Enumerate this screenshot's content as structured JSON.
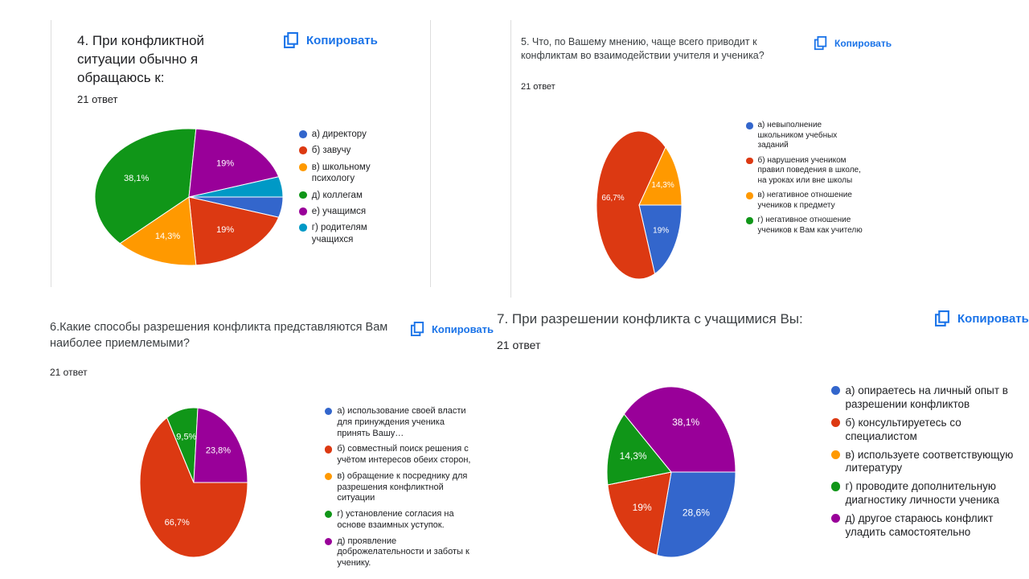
{
  "chart_data": [
    {
      "type": "pie",
      "title": "4. При конфликтной ситуации обычно я обращаюсь к:",
      "subtitle": "21 ответ",
      "copy_button": "Копировать",
      "categories": [
        "а) директору",
        "б) завучу",
        "в) школьному психологу",
        "д) коллегам",
        "е) учащимся",
        "г) родителям учащихся"
      ],
      "values": [
        4.8,
        19,
        14.3,
        38.1,
        19,
        4.8
      ],
      "value_labels": [
        null,
        "19%",
        "14,3%",
        "38,1%",
        "19%",
        null
      ],
      "colors": [
        "#3366cc",
        "#dc3912",
        "#ff9900",
        "#109618",
        "#990099",
        "#0099c6"
      ]
    },
    {
      "type": "pie",
      "title": "5. Что, по Вашему мнению, чаще всего приводит к конфликтам во взаимодействии учителя и ученика?",
      "subtitle": "21 ответ",
      "copy_button": "Копировать",
      "categories": [
        "а) невыполнение школьником учебных заданий",
        "б) нарушения учеником правил поведения в школе, на уроках или вне школы",
        "в) негативное отношение учеников к предмету",
        "г) негативное отношение учеников к Вам как учителю"
      ],
      "values": [
        19,
        66.7,
        14.3,
        0
      ],
      "value_labels": [
        "19%",
        "66,7%",
        "14,3%",
        null
      ],
      "colors": [
        "#3366cc",
        "#dc3912",
        "#ff9900",
        "#109618"
      ]
    },
    {
      "type": "pie",
      "title": "6.Какие способы разрешения конфликта представляются Вам наиболее приемлемыми?",
      "subtitle": "21 ответ",
      "copy_button": "Копировать",
      "categories": [
        "а) использование своей власти для принуждения ученика принять Вашу…",
        "б) совместный поиск решения с учётом интересов обеих сторон,",
        "в) обращение к посреднику для разрешения конфликтной ситуации",
        "г) установление согласия на основе взаимных уступок.",
        "д) проявление доброжелательности и заботы к ученику."
      ],
      "values": [
        0,
        66.7,
        0,
        9.5,
        23.8
      ],
      "value_labels": [
        null,
        "66,7%",
        null,
        "9,5%",
        "23,8%"
      ],
      "colors": [
        "#3366cc",
        "#dc3912",
        "#ff9900",
        "#109618",
        "#990099"
      ]
    },
    {
      "type": "pie",
      "title": "7. При разрешении конфликта с учащимися Вы:",
      "subtitle": "21 ответ",
      "copy_button": "Копировать",
      "categories": [
        "а) опираетесь на личный опыт в разрешении конфликтов",
        "б) консультируетесь со специалистом",
        "в) используете соответствующую литературу",
        "г) проводите дополнительную диагностику личности ученика",
        "д) другое стараюсь конфликт уладить самостоятельно"
      ],
      "values": [
        28.6,
        19,
        0,
        14.3,
        38.1
      ],
      "value_labels": [
        "28,6%",
        "19%",
        null,
        "14,3%",
        "38,1%"
      ],
      "colors": [
        "#3366cc",
        "#dc3912",
        "#ff9900",
        "#109618",
        "#990099"
      ]
    }
  ]
}
